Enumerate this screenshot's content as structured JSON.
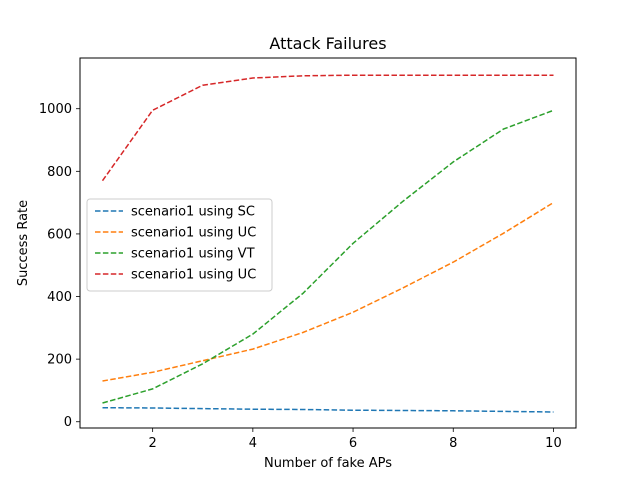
{
  "chart_data": {
    "type": "line",
    "title": "Attack Failures",
    "xlabel": "Number of fake APs",
    "ylabel": "Success Rate",
    "x": [
      1,
      2,
      3,
      4,
      5,
      6,
      7,
      8,
      9,
      10
    ],
    "xlim": [
      0.55,
      10.45
    ],
    "ylim": [
      -20,
      1162
    ],
    "xticks": [
      2,
      4,
      6,
      8,
      10
    ],
    "yticks": [
      0,
      200,
      400,
      600,
      800,
      1000
    ],
    "grid": false,
    "legend_position": "center-left",
    "line_style": "dashed",
    "series": [
      {
        "name": "scenario1 using SC",
        "color": "#1f77b4",
        "values": [
          45,
          44,
          42,
          40,
          39,
          37,
          36,
          35,
          33,
          31
        ]
      },
      {
        "name": "scenario1 using UC",
        "color": "#ff7f0e",
        "values": [
          130,
          158,
          195,
          232,
          285,
          350,
          428,
          510,
          602,
          700
        ]
      },
      {
        "name": "scenario1 using VT",
        "color": "#2ca02c",
        "values": [
          60,
          105,
          185,
          280,
          410,
          570,
          705,
          830,
          935,
          995
        ]
      },
      {
        "name": "scenario1 using UC",
        "color": "#d62728",
        "values": [
          770,
          995,
          1075,
          1098,
          1105,
          1107,
          1107,
          1107,
          1107,
          1107
        ]
      }
    ]
  }
}
